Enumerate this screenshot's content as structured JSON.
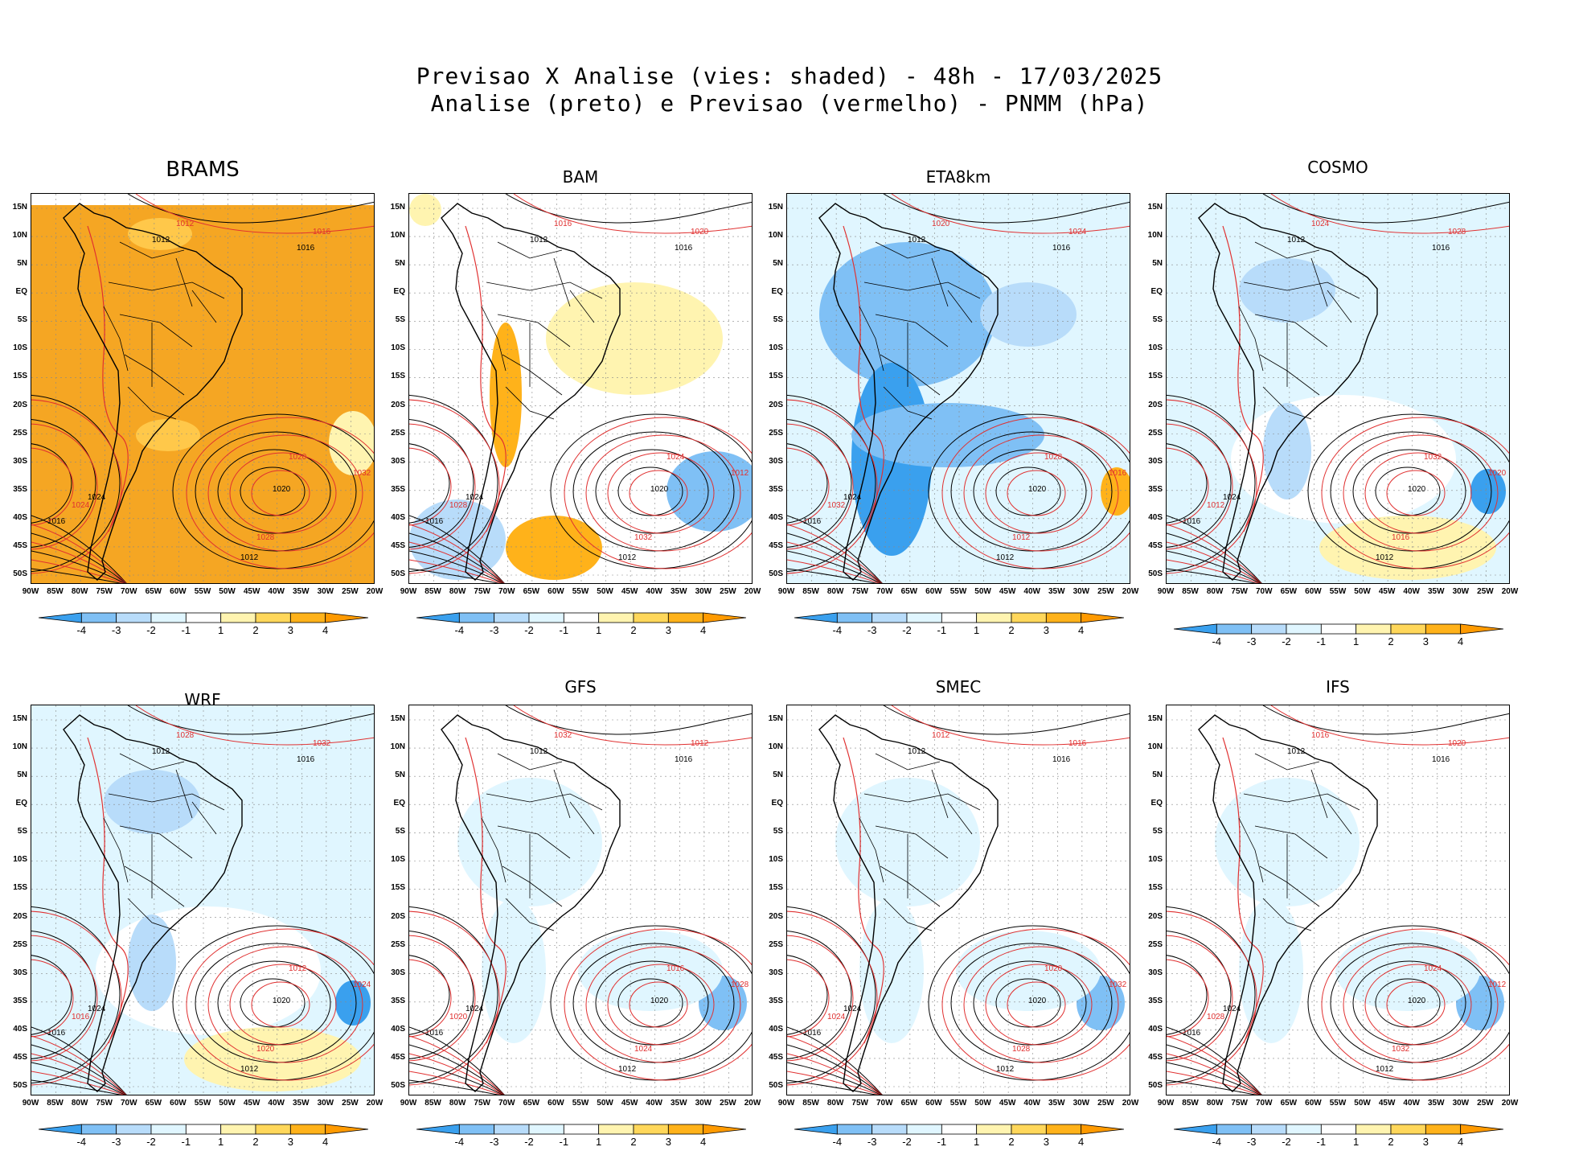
{
  "header": {
    "line1": "Previsao X Analise (vies: shaded) - 48h - 17/03/2025",
    "line2": "Analise (preto) e Previsao (vermelho) - PNMM (hPa)"
  },
  "panels": [
    {
      "name": "BRAMS",
      "bias": "orange"
    },
    {
      "name": "BAM",
      "bias": "mixed-warm"
    },
    {
      "name": "ETA8km",
      "bias": "blue"
    },
    {
      "name": "COSMO",
      "bias": "light-blue"
    },
    {
      "name": "WRF",
      "bias": "light-blue"
    },
    {
      "name": "GFS",
      "bias": "light"
    },
    {
      "name": "SMEC",
      "bias": "light"
    },
    {
      "name": "IFS",
      "bias": "light"
    }
  ],
  "lat_labels": [
    "15N",
    "10N",
    "5N",
    "EQ",
    "5S",
    "10S",
    "15S",
    "20S",
    "25S",
    "30S",
    "35S",
    "40S",
    "45S",
    "50S"
  ],
  "lon_labels": [
    "90W",
    "85W",
    "80W",
    "75W",
    "70W",
    "65W",
    "60W",
    "55W",
    "50W",
    "45W",
    "40W",
    "35W",
    "30W",
    "25W",
    "20W"
  ],
  "colorbar": {
    "labels": [
      "-4",
      "-3",
      "-2",
      "-1",
      "1",
      "2",
      "3",
      "4"
    ],
    "colors": [
      "#3aa0ee",
      "#7fc0f5",
      "#b8dcfa",
      "#e0f6ff",
      "#ffffff",
      "#fff4b0",
      "#ffd75a",
      "#ffb21a",
      "#ff9a00"
    ]
  },
  "isobar_labels": {
    "analysis": [
      "1012",
      "1016",
      "1020",
      "1024"
    ],
    "forecast": [
      "1012",
      "1016",
      "1020",
      "1024",
      "1028",
      "1032"
    ]
  },
  "colors": {
    "analysis": "#000000",
    "forecast": "#e03030",
    "orange": "#f5a623"
  }
}
